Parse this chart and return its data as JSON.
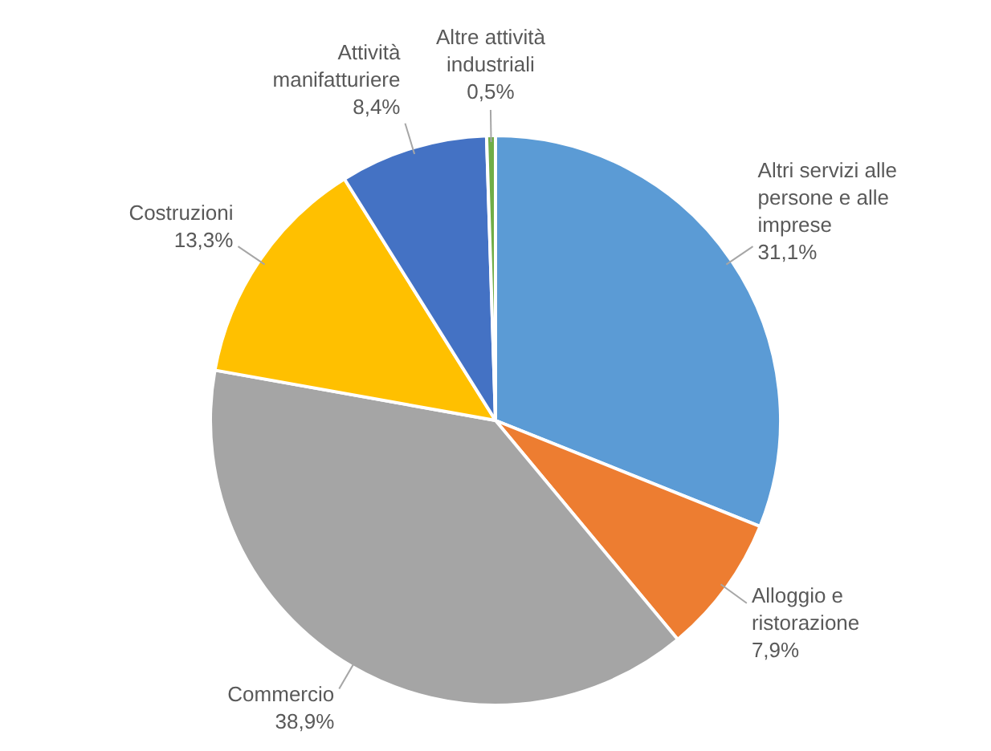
{
  "chart_data": {
    "type": "pie",
    "categories": [
      "Altri servizi alle persone e alle imprese",
      "Alloggio e ristorazione",
      "Commercio",
      "Costruzioni",
      "Attività manifatturiere",
      "Altre attività industriali"
    ],
    "values": [
      31.1,
      7.9,
      38.9,
      13.3,
      8.4,
      0.5
    ],
    "colors": [
      "#5b9bd5",
      "#ed7d31",
      "#a5a5a5",
      "#ffc000",
      "#4472c4",
      "#70ad47"
    ],
    "value_labels": [
      "31,1%",
      "7,9%",
      "38,9%",
      "13,3%",
      "8,4%",
      "0,5%"
    ],
    "legend": false
  }
}
